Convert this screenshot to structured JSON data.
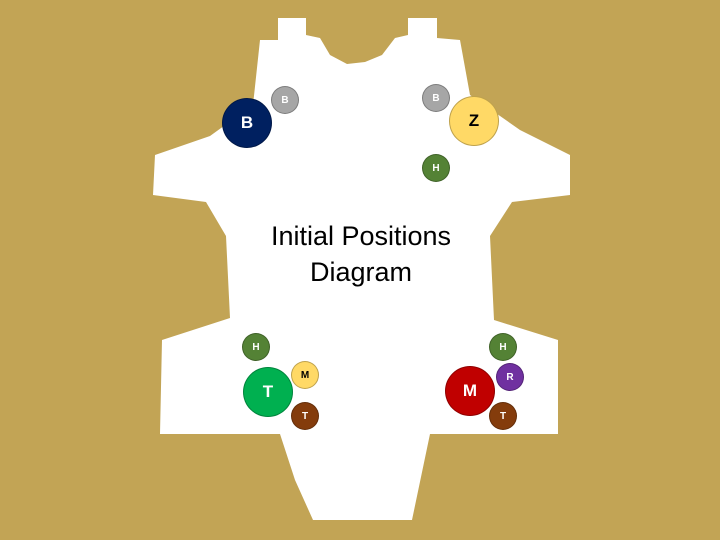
{
  "background_color": "#c2a455",
  "board_color": "#ffffff",
  "title": {
    "line1": "Initial Positions",
    "line2": "Diagram"
  },
  "tokens": [
    {
      "id": "B-large",
      "letter": "B",
      "fill": "#002060",
      "text_color": "#ffffff"
    },
    {
      "id": "B-small-left",
      "letter": "B",
      "fill": "#a6a6a6",
      "text_color": "#ffffff"
    },
    {
      "id": "B-small-right",
      "letter": "B",
      "fill": "#a6a6a6",
      "text_color": "#ffffff"
    },
    {
      "id": "Z-large",
      "letter": "Z",
      "fill": "#ffd966",
      "text_color": "#000000"
    },
    {
      "id": "H-top",
      "letter": "H",
      "fill": "#548235",
      "text_color": "#ffffff"
    },
    {
      "id": "H-bottom-left",
      "letter": "H",
      "fill": "#548235",
      "text_color": "#ffffff"
    },
    {
      "id": "T-large",
      "letter": "T",
      "fill": "#00b050",
      "text_color": "#ffffff"
    },
    {
      "id": "M-small",
      "letter": "M",
      "fill": "#ffd966",
      "text_color": "#000000"
    },
    {
      "id": "T-small-left",
      "letter": "T",
      "fill": "#843c0c",
      "text_color": "#ffffff"
    },
    {
      "id": "H-bottom-right",
      "letter": "H",
      "fill": "#548235",
      "text_color": "#ffffff"
    },
    {
      "id": "M-large",
      "letter": "M",
      "fill": "#c00000",
      "text_color": "#ffffff"
    },
    {
      "id": "R-small",
      "letter": "R",
      "fill": "#7030a0",
      "text_color": "#ffffff"
    },
    {
      "id": "T-small-right",
      "letter": "T",
      "fill": "#843c0c",
      "text_color": "#ffffff"
    }
  ]
}
